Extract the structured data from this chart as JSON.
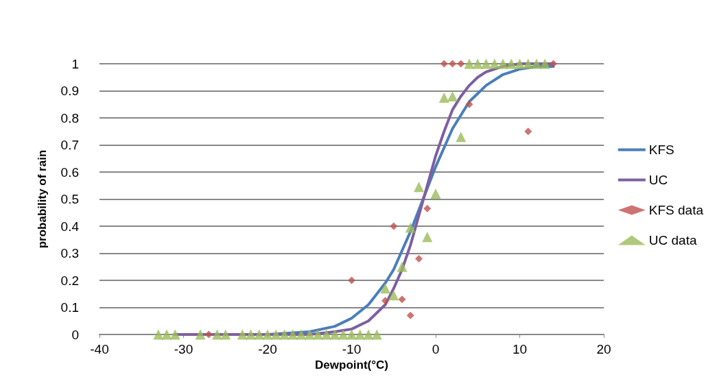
{
  "chart_data": {
    "type": "scatter",
    "xlabel": "Dewpoint(°C)",
    "ylabel": "probability of rain",
    "xlim": [
      -40,
      20
    ],
    "xticks": [
      -40,
      -30,
      -20,
      -10,
      0,
      10,
      20
    ],
    "ylim": [
      0,
      1
    ],
    "yticks": [
      0,
      0.1,
      0.2,
      0.3,
      0.4,
      0.5,
      0.6,
      0.7,
      0.8,
      0.9,
      1
    ],
    "grid": "y",
    "legend": "right",
    "series": [
      {
        "name": "KFS",
        "type": "line",
        "marker": "none",
        "color": "#4a7ebb",
        "x": [
          -31,
          -25,
          -20,
          -15,
          -12,
          -10,
          -8,
          -6,
          -5,
          -4,
          -3,
          -2,
          -1,
          0,
          1,
          2,
          3,
          4,
          5,
          6,
          8,
          10,
          12,
          14
        ],
        "values": [
          0,
          0,
          0,
          0.01,
          0.03,
          0.06,
          0.11,
          0.19,
          0.24,
          0.31,
          0.38,
          0.46,
          0.54,
          0.62,
          0.69,
          0.76,
          0.81,
          0.86,
          0.89,
          0.92,
          0.96,
          0.98,
          0.99,
          0.99
        ]
      },
      {
        "name": "UC",
        "type": "line",
        "marker": "none",
        "color": "#7d5fa0",
        "x": [
          -31,
          -25,
          -20,
          -15,
          -12,
          -10,
          -8,
          -6,
          -5,
          -4,
          -3,
          -2,
          -1,
          0,
          1,
          2,
          3,
          4,
          5,
          6,
          8,
          10,
          12,
          14
        ],
        "values": [
          0,
          0,
          0,
          0,
          0.01,
          0.02,
          0.05,
          0.11,
          0.17,
          0.24,
          0.33,
          0.44,
          0.55,
          0.66,
          0.75,
          0.83,
          0.88,
          0.92,
          0.95,
          0.97,
          0.99,
          1,
          1,
          1
        ]
      },
      {
        "name": "KFS data",
        "marker": "diamond",
        "color": "#c0504d",
        "x": [
          -27,
          -10,
          -6,
          -5,
          -4,
          -3,
          -2,
          -1,
          1,
          2,
          3,
          4,
          11,
          14
        ],
        "values": [
          0,
          0.2,
          0.125,
          0.4,
          0.13,
          0.07,
          0.28,
          0.465,
          1,
          1,
          1,
          0.85,
          0.75,
          1
        ]
      },
      {
        "name": "UC data",
        "marker": "triangle",
        "color": "#9bbb59",
        "x": [
          -33,
          -32,
          -31,
          -28,
          -26,
          -25,
          -23,
          -22,
          -21,
          -20,
          -19,
          -18,
          -17,
          -16,
          -15,
          -14,
          -13,
          -12,
          -11,
          -10,
          -9,
          -8,
          -7,
          -6,
          -5,
          -4,
          -3,
          -2,
          -1,
          0,
          1,
          2,
          3,
          4,
          5,
          6,
          7,
          8,
          9,
          10,
          11,
          12,
          13
        ],
        "values": [
          0,
          0,
          0,
          0,
          0,
          0,
          0,
          0,
          0,
          0,
          0,
          0,
          0,
          0,
          0,
          0,
          0,
          0,
          0,
          0,
          0,
          0,
          0,
          0.17,
          0.145,
          0.25,
          0.395,
          0.545,
          0.36,
          0.52,
          0.875,
          0.88,
          0.73,
          1,
          1,
          1,
          1,
          1,
          1,
          1,
          1,
          1,
          1
        ]
      }
    ]
  }
}
